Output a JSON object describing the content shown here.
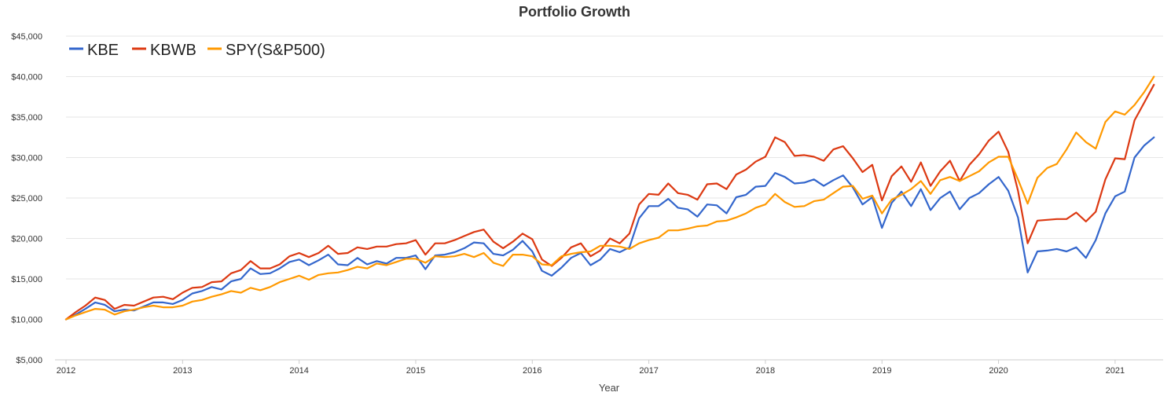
{
  "chart_data": {
    "type": "line",
    "title": "Portfolio Growth",
    "xlabel": "Year",
    "ylabel": "",
    "x_start": "2012-01",
    "x_frequency": "monthly",
    "xticks": [
      "2012",
      "2013",
      "2014",
      "2015",
      "2016",
      "2017",
      "2018",
      "2019",
      "2020",
      "2021"
    ],
    "yticks": [
      "$5,000",
      "$10,000",
      "$15,000",
      "$20,000",
      "$25,000",
      "$30,000",
      "$35,000",
      "$40,000",
      "$45,000"
    ],
    "ylim": [
      5000,
      45000
    ],
    "xlim": [
      "2012-01",
      "2021-05"
    ],
    "grid": "horizontal",
    "legend_position": "top-left",
    "series": [
      {
        "name": "KBE",
        "color": "#3366cc",
        "values": [
          10000,
          10600,
          11300,
          12100,
          11800,
          11000,
          11200,
          11100,
          11600,
          12100,
          12100,
          11900,
          12400,
          13200,
          13500,
          14000,
          13700,
          14700,
          15000,
          16300,
          15600,
          15700,
          16300,
          17100,
          17400,
          16700,
          17300,
          18000,
          16800,
          16700,
          17600,
          16800,
          17200,
          16900,
          17600,
          17600,
          17900,
          16200,
          17900,
          18000,
          18300,
          18800,
          19500,
          19400,
          18100,
          17900,
          18600,
          19700,
          18400,
          16000,
          15400,
          16400,
          17600,
          18200,
          16700,
          17400,
          18700,
          18300,
          18900,
          22500,
          24000,
          24000,
          24900,
          23800,
          23600,
          22700,
          24200,
          24100,
          23100,
          25100,
          25400,
          26400,
          26500,
          28100,
          27600,
          26800,
          26900,
          27300,
          26500,
          27200,
          27800,
          26300,
          24200,
          25100,
          21300,
          24400,
          25800,
          24000,
          26100,
          23500,
          25000,
          25800,
          23600,
          25000,
          25600,
          26700,
          27600,
          25900,
          22600,
          15800,
          18400,
          18500,
          18700,
          18400,
          18900,
          17600,
          19800,
          23100,
          25200,
          25800,
          30000,
          31500,
          32500
        ]
      },
      {
        "name": "KBWB",
        "color": "#dc3912",
        "values": [
          10000,
          10900,
          11700,
          12700,
          12400,
          11300,
          11800,
          11700,
          12200,
          12700,
          12800,
          12500,
          13300,
          13900,
          14000,
          14600,
          14700,
          15700,
          16100,
          17200,
          16300,
          16300,
          16800,
          17800,
          18200,
          17700,
          18200,
          19100,
          18100,
          18200,
          18900,
          18700,
          19000,
          19000,
          19300,
          19400,
          19800,
          18000,
          19400,
          19400,
          19800,
          20300,
          20800,
          21100,
          19600,
          18800,
          19600,
          20600,
          19900,
          17400,
          16600,
          17600,
          18900,
          19400,
          17800,
          18500,
          20000,
          19400,
          20600,
          24200,
          25500,
          25400,
          26800,
          25600,
          25400,
          24800,
          26700,
          26800,
          26100,
          27900,
          28500,
          29500,
          30100,
          32500,
          31900,
          30200,
          30300,
          30100,
          29600,
          31000,
          31400,
          29900,
          28200,
          29100,
          24700,
          27700,
          28900,
          27000,
          29400,
          26500,
          28300,
          29600,
          27100,
          29100,
          30400,
          32100,
          33200,
          30700,
          25900,
          19400,
          22200,
          22300,
          22400,
          22400,
          23200,
          22100,
          23300,
          27300,
          29900,
          29800,
          34600,
          36800,
          39000
        ]
      },
      {
        "name": "SPY(S&P500)",
        "color": "#ff9900",
        "values": [
          10000,
          10500,
          10900,
          11300,
          11200,
          10600,
          11000,
          11200,
          11500,
          11700,
          11500,
          11500,
          11700,
          12200,
          12400,
          12800,
          13100,
          13500,
          13300,
          13900,
          13600,
          14000,
          14600,
          15000,
          15400,
          14900,
          15500,
          15700,
          15800,
          16100,
          16500,
          16300,
          16900,
          16700,
          17100,
          17500,
          17500,
          17000,
          17800,
          17700,
          17800,
          18100,
          17700,
          18200,
          17000,
          16600,
          18000,
          18000,
          17800,
          16800,
          16700,
          17800,
          18100,
          18300,
          18400,
          19100,
          19100,
          19000,
          18700,
          19400,
          19800,
          20100,
          21000,
          21000,
          21200,
          21500,
          21600,
          22100,
          22200,
          22600,
          23100,
          23800,
          24200,
          25500,
          24500,
          23900,
          24000,
          24600,
          24800,
          25600,
          26400,
          26500,
          24900,
          25300,
          23100,
          24800,
          25400,
          26100,
          27100,
          25500,
          27200,
          27600,
          27100,
          27700,
          28300,
          29400,
          30100,
          30100,
          27300,
          24300,
          27500,
          28700,
          29200,
          31000,
          33100,
          31900,
          31100,
          34400,
          35700,
          35300,
          36500,
          38100,
          40000
        ]
      }
    ]
  }
}
